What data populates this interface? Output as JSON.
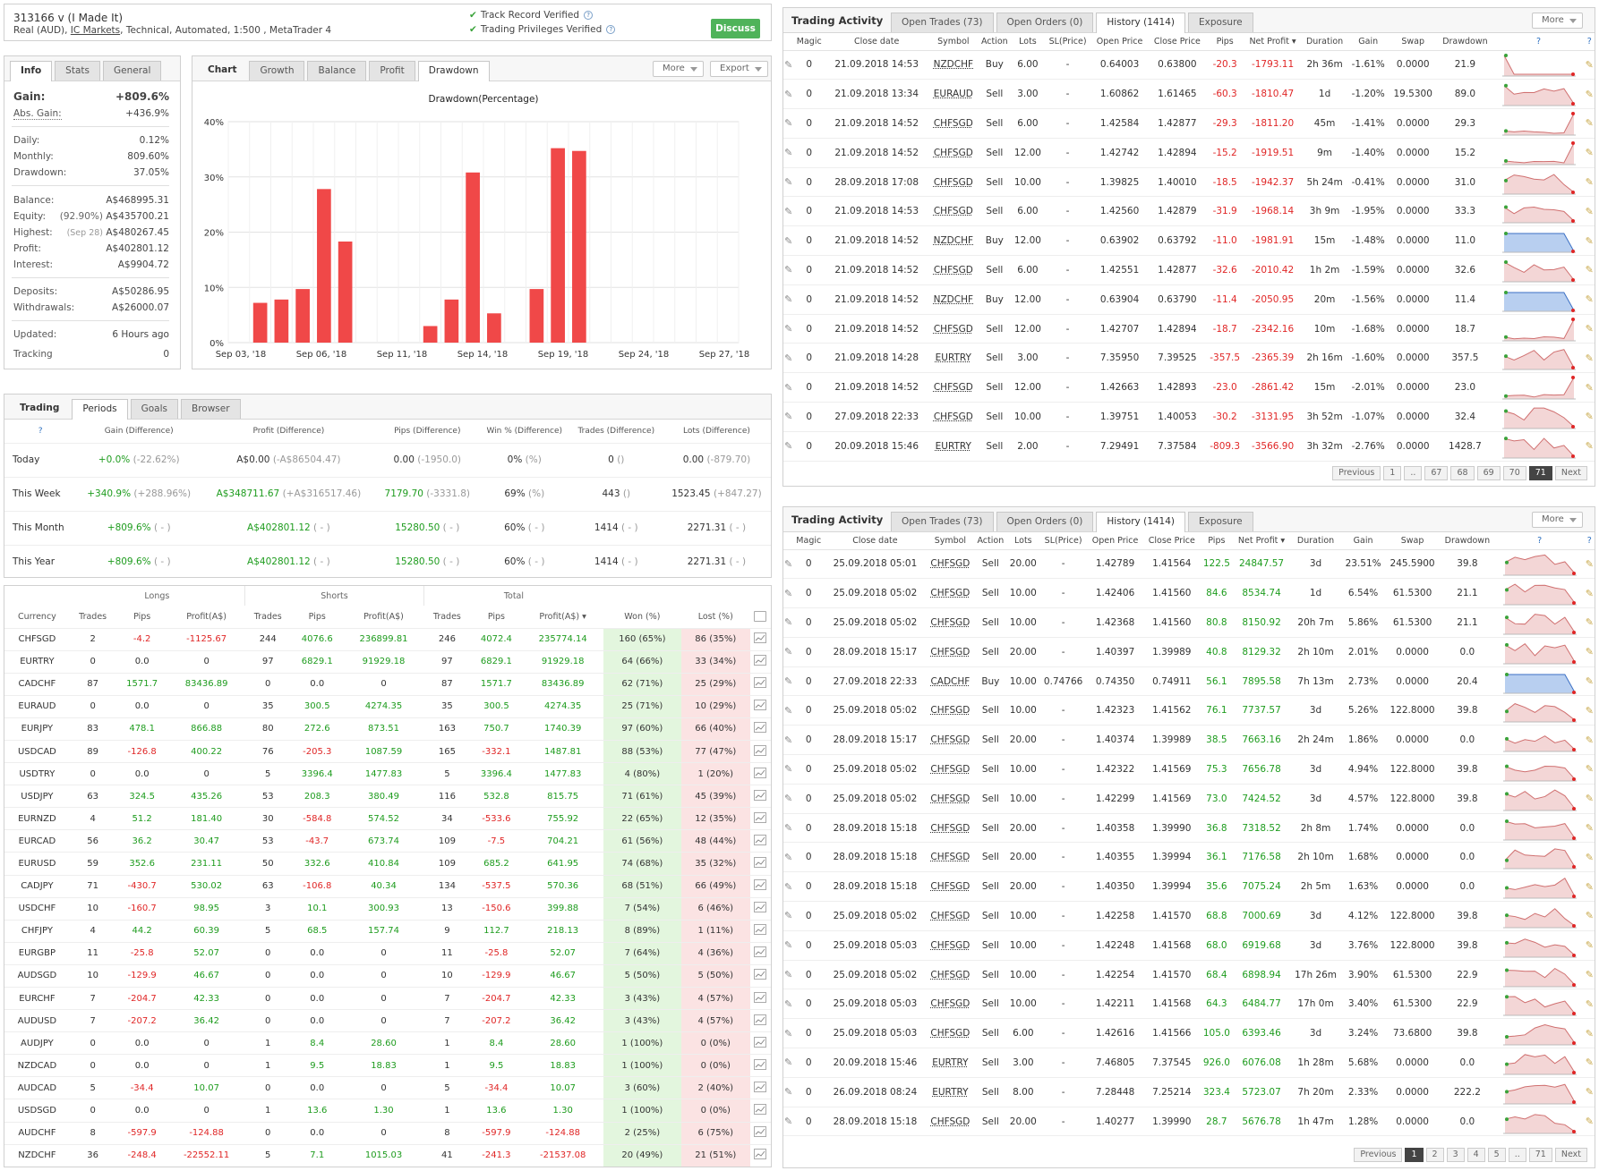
{
  "header": {
    "title": "313166 v (I Made It)",
    "subtitle_pre": "Real (AUD), ",
    "broker": "IC Markets",
    "subtitle_post": ", Technical, Automated, 1:500 , MetaTrader 4",
    "verify1": "Track Record Verified",
    "verify2": "Trading Privileges Verified",
    "discuss": "Discuss"
  },
  "info": {
    "tabs": [
      "Info",
      "Stats",
      "General"
    ],
    "gain_label": "Gain:",
    "gain": "+809.6%",
    "abs_label": "Abs. Gain:",
    "abs": "+436.9%",
    "daily_label": "Daily:",
    "daily": "0.12%",
    "monthly_label": "Monthly:",
    "monthly": "809.60%",
    "drawdown_label": "Drawdown:",
    "drawdown": "37.05%",
    "balance_label": "Balance:",
    "balance": "A$468995.31",
    "equity_label": "Equity:",
    "equity_pct": "(92.90%)",
    "equity": "A$435700.21",
    "highest_label": "Highest:",
    "highest_date": "(Sep 28)",
    "highest": "A$480267.45",
    "profit_label": "Profit:",
    "profit": "A$402801.12",
    "interest_label": "Interest:",
    "interest": "A$9904.72",
    "deposits_label": "Deposits:",
    "deposits": "A$50286.95",
    "withdrawals_label": "Withdrawals:",
    "withdrawals": "A$26000.07",
    "updated_label": "Updated:",
    "updated": "6 Hours ago",
    "tracking_label": "Tracking",
    "tracking": "0"
  },
  "chart": {
    "tabs": [
      "Chart",
      "Growth",
      "Balance",
      "Profit",
      "Drawdown"
    ],
    "more": "More",
    "export": "Export"
  },
  "chart_data": {
    "type": "bar",
    "title": "Drawdown(Percentage)",
    "ylim": [
      0,
      40
    ],
    "yticks": [
      "0%",
      "10%",
      "20%",
      "30%",
      "40%"
    ],
    "x_tick_labels": [
      "Sep 03, '18",
      "Sep 06, '18",
      "Sep 11, '18",
      "Sep 14, '18",
      "Sep 19, '18",
      "Sep 24, '18",
      "Sep 27, '18"
    ],
    "bars": [
      {
        "slot": 1,
        "value": 7.2
      },
      {
        "slot": 2,
        "value": 7.8
      },
      {
        "slot": 3,
        "value": 9.7
      },
      {
        "slot": 4,
        "value": 27.8
      },
      {
        "slot": 5,
        "value": 18.3
      },
      {
        "slot": 9,
        "value": 3.0
      },
      {
        "slot": 10,
        "value": 7.8
      },
      {
        "slot": 11,
        "value": 30.8
      },
      {
        "slot": 12,
        "value": 5.3
      },
      {
        "slot": 14,
        "value": 9.7
      },
      {
        "slot": 15,
        "value": 35.2
      },
      {
        "slot": 16,
        "value": 34.7
      }
    ],
    "slots": 24
  },
  "trading": {
    "tabs": [
      "Trading",
      "Periods",
      "Goals",
      "Browser"
    ],
    "headers": [
      "",
      "Gain (Difference)",
      "Profit (Difference)",
      "Pips (Difference)",
      "Win % (Difference)",
      "Trades (Difference)",
      "Lots (Difference)"
    ],
    "rows": [
      [
        "Today",
        "+0.0%",
        "(-22.62%)",
        "A$0.00",
        "(-A$86504.47)",
        "0.00",
        "(-1950.0)",
        "0%",
        "(%)",
        "0",
        "()",
        "0.00",
        "(-879.70)"
      ],
      [
        "This Week",
        "+340.9%",
        "(+288.96%)",
        "A$348711.67",
        "(+A$316517.46)",
        "7179.70",
        "(-3331.8)",
        "69%",
        "(%)",
        "443",
        "()",
        "1523.45",
        "(+847.27)"
      ],
      [
        "This Month",
        "+809.6%",
        "( - )",
        "A$402801.12",
        "( - )",
        "15280.50",
        "( - )",
        "60%",
        "( - )",
        "1414",
        "( - )",
        "2271.31",
        "( - )"
      ],
      [
        "This Year",
        "+809.6%",
        "( - )",
        "A$402801.12",
        "( - )",
        "15280.50",
        "( - )",
        "60%",
        "( - )",
        "1414",
        "( - )",
        "2271.31",
        "( - )"
      ]
    ]
  },
  "currency": {
    "groups": [
      "Longs",
      "Shorts",
      "Total"
    ],
    "headers": [
      "Currency",
      "Trades",
      "Pips",
      "Profit(A$)",
      "Trades",
      "Pips",
      "Profit(A$)",
      "Trades",
      "Pips",
      "Profit(A$) ▾",
      "Won (%)",
      "Lost (%)"
    ],
    "rows": [
      [
        "CHFSGD",
        "2",
        "-4.2",
        "-1125.67",
        "244",
        "4076.6",
        "236899.81",
        "246",
        "4072.4",
        "235774.14",
        "160 (65%)",
        "86 (35%)"
      ],
      [
        "EURTRY",
        "0",
        "0.0",
        "0",
        "97",
        "6829.1",
        "91929.18",
        "97",
        "6829.1",
        "91929.18",
        "64 (66%)",
        "33 (34%)"
      ],
      [
        "CADCHF",
        "87",
        "1571.7",
        "83436.89",
        "0",
        "0.0",
        "0",
        "87",
        "1571.7",
        "83436.89",
        "62 (71%)",
        "25 (29%)"
      ],
      [
        "EURAUD",
        "0",
        "0.0",
        "0",
        "35",
        "300.5",
        "4274.35",
        "35",
        "300.5",
        "4274.35",
        "25 (71%)",
        "10 (29%)"
      ],
      [
        "EURJPY",
        "83",
        "478.1",
        "866.88",
        "80",
        "272.6",
        "873.51",
        "163",
        "750.7",
        "1740.39",
        "97 (60%)",
        "66 (40%)"
      ],
      [
        "USDCAD",
        "89",
        "-126.8",
        "400.22",
        "76",
        "-205.3",
        "1087.59",
        "165",
        "-332.1",
        "1487.81",
        "88 (53%)",
        "77 (47%)"
      ],
      [
        "USDTRY",
        "0",
        "0.0",
        "0",
        "5",
        "3396.4",
        "1477.83",
        "5",
        "3396.4",
        "1477.83",
        "4 (80%)",
        "1 (20%)"
      ],
      [
        "USDJPY",
        "63",
        "324.5",
        "435.26",
        "53",
        "208.3",
        "380.49",
        "116",
        "532.8",
        "815.75",
        "71 (61%)",
        "45 (39%)"
      ],
      [
        "EURNZD",
        "4",
        "51.2",
        "181.40",
        "30",
        "-584.8",
        "574.52",
        "34",
        "-533.6",
        "755.92",
        "22 (65%)",
        "12 (35%)"
      ],
      [
        "EURCAD",
        "56",
        "36.2",
        "30.47",
        "53",
        "-43.7",
        "673.74",
        "109",
        "-7.5",
        "704.21",
        "61 (56%)",
        "48 (44%)"
      ],
      [
        "EURUSD",
        "59",
        "352.6",
        "231.11",
        "50",
        "332.6",
        "410.84",
        "109",
        "685.2",
        "641.95",
        "74 (68%)",
        "35 (32%)"
      ],
      [
        "CADJPY",
        "71",
        "-430.7",
        "530.02",
        "63",
        "-106.8",
        "40.34",
        "134",
        "-537.5",
        "570.36",
        "68 (51%)",
        "66 (49%)"
      ],
      [
        "USDCHF",
        "10",
        "-160.7",
        "98.95",
        "3",
        "10.1",
        "300.93",
        "13",
        "-150.6",
        "399.88",
        "7 (54%)",
        "6 (46%)"
      ],
      [
        "CHFJPY",
        "4",
        "44.2",
        "60.39",
        "5",
        "68.5",
        "157.74",
        "9",
        "112.7",
        "218.13",
        "8 (89%)",
        "1 (11%)"
      ],
      [
        "EURGBP",
        "11",
        "-25.8",
        "52.07",
        "0",
        "0.0",
        "0",
        "11",
        "-25.8",
        "52.07",
        "7 (64%)",
        "4 (36%)"
      ],
      [
        "AUDSGD",
        "10",
        "-129.9",
        "46.67",
        "0",
        "0.0",
        "0",
        "10",
        "-129.9",
        "46.67",
        "5 (50%)",
        "5 (50%)"
      ],
      [
        "EURCHF",
        "7",
        "-204.7",
        "42.33",
        "0",
        "0.0",
        "0",
        "7",
        "-204.7",
        "42.33",
        "3 (43%)",
        "4 (57%)"
      ],
      [
        "AUDUSD",
        "7",
        "-207.2",
        "36.42",
        "0",
        "0.0",
        "0",
        "7",
        "-207.2",
        "36.42",
        "3 (43%)",
        "4 (57%)"
      ],
      [
        "AUDJPY",
        "0",
        "0.0",
        "0",
        "1",
        "8.4",
        "28.60",
        "1",
        "8.4",
        "28.60",
        "1 (100%)",
        "0 (0%)"
      ],
      [
        "NZDCAD",
        "0",
        "0.0",
        "0",
        "1",
        "9.5",
        "18.83",
        "1",
        "9.5",
        "18.83",
        "1 (100%)",
        "0 (0%)"
      ],
      [
        "AUDCAD",
        "5",
        "-34.4",
        "10.07",
        "0",
        "0.0",
        "0",
        "5",
        "-34.4",
        "10.07",
        "3 (60%)",
        "2 (40%)"
      ],
      [
        "USDSGD",
        "0",
        "0.0",
        "0",
        "1",
        "13.6",
        "1.30",
        "1",
        "13.6",
        "1.30",
        "1 (100%)",
        "0 (0%)"
      ],
      [
        "AUDCHF",
        "8",
        "-597.9",
        "-124.88",
        "0",
        "0.0",
        "0",
        "8",
        "-597.9",
        "-124.88",
        "2 (25%)",
        "6 (75%)"
      ],
      [
        "NZDCHF",
        "36",
        "-248.4",
        "-22552.11",
        "5",
        "7.1",
        "1015.03",
        "41",
        "-241.3",
        "-21537.08",
        "20 (49%)",
        "21 (51%)"
      ]
    ]
  },
  "activity1": {
    "title": "Trading Activity",
    "tabs": [
      "Open Trades (73)",
      "Open Orders (0)",
      "History (1414)",
      "Exposure"
    ],
    "more": "More",
    "headers": [
      "",
      "Magic",
      "Close date",
      "Symbol",
      "Action",
      "Lots",
      "SL(Price)",
      "Open Price",
      "Close Price",
      "Pips",
      "Net Profit ▾",
      "Duration",
      "Gain",
      "Swap",
      "Drawdown",
      "?",
      ""
    ],
    "rows": [
      [
        "0",
        "21.09.2018 14:53",
        "NZDCHF",
        "Buy",
        "6.00",
        "-",
        "0.64003",
        "0.63800",
        "-20.3",
        "-1793.11",
        "2h 36m",
        "-1.61%",
        "0.0000",
        "21.9"
      ],
      [
        "0",
        "21.09.2018 13:34",
        "EURAUD",
        "Sell",
        "3.00",
        "-",
        "1.60862",
        "1.61465",
        "-60.3",
        "-1810.47",
        "1d",
        "-1.20%",
        "19.5300",
        "89.0"
      ],
      [
        "0",
        "21.09.2018 14:52",
        "CHFSGD",
        "Sell",
        "6.00",
        "-",
        "1.42584",
        "1.42877",
        "-29.3",
        "-1811.20",
        "45m",
        "-1.41%",
        "0.0000",
        "29.3"
      ],
      [
        "0",
        "21.09.2018 14:52",
        "CHFSGD",
        "Sell",
        "12.00",
        "-",
        "1.42742",
        "1.42894",
        "-15.2",
        "-1919.51",
        "9m",
        "-1.40%",
        "0.0000",
        "15.2"
      ],
      [
        "0",
        "28.09.2018 17:08",
        "CHFSGD",
        "Sell",
        "10.00",
        "-",
        "1.39825",
        "1.40010",
        "-18.5",
        "-1942.37",
        "5h 24m",
        "-0.41%",
        "0.0000",
        "31.0"
      ],
      [
        "0",
        "21.09.2018 14:53",
        "CHFSGD",
        "Sell",
        "6.00",
        "-",
        "1.42560",
        "1.42879",
        "-31.9",
        "-1968.14",
        "3h 9m",
        "-1.95%",
        "0.0000",
        "33.3"
      ],
      [
        "0",
        "21.09.2018 14:52",
        "NZDCHF",
        "Buy",
        "12.00",
        "-",
        "0.63902",
        "0.63792",
        "-11.0",
        "-1981.91",
        "15m",
        "-1.48%",
        "0.0000",
        "11.0"
      ],
      [
        "0",
        "21.09.2018 14:52",
        "CHFSGD",
        "Sell",
        "6.00",
        "-",
        "1.42551",
        "1.42877",
        "-32.6",
        "-2010.42",
        "1h 2m",
        "-1.59%",
        "0.0000",
        "32.6"
      ],
      [
        "0",
        "21.09.2018 14:52",
        "NZDCHF",
        "Buy",
        "12.00",
        "-",
        "0.63904",
        "0.63790",
        "-11.4",
        "-2050.95",
        "20m",
        "-1.56%",
        "0.0000",
        "11.4"
      ],
      [
        "0",
        "21.09.2018 14:52",
        "CHFSGD",
        "Sell",
        "12.00",
        "-",
        "1.42707",
        "1.42894",
        "-18.7",
        "-2342.16",
        "10m",
        "-1.68%",
        "0.0000",
        "18.7"
      ],
      [
        "0",
        "21.09.2018 14:28",
        "EURTRY",
        "Sell",
        "3.00",
        "-",
        "7.35950",
        "7.39525",
        "-357.5",
        "-2365.39",
        "2h 16m",
        "-1.60%",
        "0.0000",
        "357.5"
      ],
      [
        "0",
        "21.09.2018 14:52",
        "CHFSGD",
        "Sell",
        "12.00",
        "-",
        "1.42663",
        "1.42893",
        "-23.0",
        "-2861.42",
        "15m",
        "-2.01%",
        "0.0000",
        "23.0"
      ],
      [
        "0",
        "27.09.2018 22:33",
        "CHFSGD",
        "Sell",
        "10.00",
        "-",
        "1.39751",
        "1.40053",
        "-30.2",
        "-3131.95",
        "3h 52m",
        "-1.07%",
        "0.0000",
        "32.4"
      ],
      [
        "0",
        "20.09.2018 15:46",
        "EURTRY",
        "Sell",
        "2.00",
        "-",
        "7.29491",
        "7.37584",
        "-809.3",
        "-3566.90",
        "3h 32m",
        "-2.76%",
        "0.0000",
        "1428.7"
      ]
    ],
    "pager": [
      "Previous",
      "1",
      "..",
      "67",
      "68",
      "69",
      "70",
      "71",
      "Next"
    ],
    "pager_current": "71"
  },
  "activity2": {
    "title": "Trading Activity",
    "tabs": [
      "Open Trades (73)",
      "Open Orders (0)",
      "History (1414)",
      "Exposure"
    ],
    "more": "More",
    "headers": [
      "",
      "Magic",
      "Close date",
      "Symbol",
      "Action",
      "Lots",
      "SL(Price)",
      "Open Price",
      "Close Price",
      "Pips",
      "Net Profit ▾",
      "Duration",
      "Gain",
      "Swap",
      "Drawdown",
      "?",
      ""
    ],
    "rows": [
      [
        "0",
        "25.09.2018 05:01",
        "CHFSGD",
        "Sell",
        "20.00",
        "-",
        "1.42789",
        "1.41564",
        "122.5",
        "24847.57",
        "3d",
        "23.51%",
        "245.5900",
        "39.8"
      ],
      [
        "0",
        "25.09.2018 05:02",
        "CHFSGD",
        "Sell",
        "10.00",
        "-",
        "1.42406",
        "1.41560",
        "84.6",
        "8534.74",
        "1d",
        "6.54%",
        "61.5300",
        "21.1"
      ],
      [
        "0",
        "25.09.2018 05:02",
        "CHFSGD",
        "Sell",
        "10.00",
        "-",
        "1.42368",
        "1.41560",
        "80.8",
        "8150.92",
        "20h 7m",
        "5.86%",
        "61.5300",
        "21.1"
      ],
      [
        "0",
        "28.09.2018 15:17",
        "CHFSGD",
        "Sell",
        "20.00",
        "-",
        "1.40397",
        "1.39989",
        "40.8",
        "8129.32",
        "2h 10m",
        "2.01%",
        "0.0000",
        "0.0"
      ],
      [
        "0",
        "27.09.2018 22:33",
        "CADCHF",
        "Buy",
        "10.00",
        "0.74766",
        "0.74350",
        "0.74911",
        "56.1",
        "7895.58",
        "7h 13m",
        "2.73%",
        "0.0000",
        "20.4"
      ],
      [
        "0",
        "25.09.2018 05:02",
        "CHFSGD",
        "Sell",
        "10.00",
        "-",
        "1.42323",
        "1.41562",
        "76.1",
        "7737.57",
        "3d",
        "5.26%",
        "122.8000",
        "39.8"
      ],
      [
        "0",
        "28.09.2018 15:17",
        "CHFSGD",
        "Sell",
        "20.00",
        "-",
        "1.40374",
        "1.39989",
        "38.5",
        "7663.16",
        "2h 24m",
        "1.86%",
        "0.0000",
        "0.0"
      ],
      [
        "0",
        "25.09.2018 05:02",
        "CHFSGD",
        "Sell",
        "10.00",
        "-",
        "1.42322",
        "1.41569",
        "75.3",
        "7656.78",
        "3d",
        "4.94%",
        "122.8000",
        "39.8"
      ],
      [
        "0",
        "25.09.2018 05:02",
        "CHFSGD",
        "Sell",
        "10.00",
        "-",
        "1.42299",
        "1.41569",
        "73.0",
        "7424.52",
        "3d",
        "4.57%",
        "122.8000",
        "39.8"
      ],
      [
        "0",
        "28.09.2018 15:18",
        "CHFSGD",
        "Sell",
        "20.00",
        "-",
        "1.40358",
        "1.39990",
        "36.8",
        "7318.52",
        "2h 8m",
        "1.74%",
        "0.0000",
        "0.0"
      ],
      [
        "0",
        "28.09.2018 15:18",
        "CHFSGD",
        "Sell",
        "20.00",
        "-",
        "1.40355",
        "1.39994",
        "36.1",
        "7176.58",
        "2h 10m",
        "1.68%",
        "0.0000",
        "0.0"
      ],
      [
        "0",
        "28.09.2018 15:18",
        "CHFSGD",
        "Sell",
        "20.00",
        "-",
        "1.40350",
        "1.39994",
        "35.6",
        "7075.24",
        "2h 5m",
        "1.63%",
        "0.0000",
        "0.0"
      ],
      [
        "0",
        "25.09.2018 05:02",
        "CHFSGD",
        "Sell",
        "10.00",
        "-",
        "1.42258",
        "1.41570",
        "68.8",
        "7000.69",
        "3d",
        "4.12%",
        "122.8000",
        "39.8"
      ],
      [
        "0",
        "25.09.2018 05:03",
        "CHFSGD",
        "Sell",
        "10.00",
        "-",
        "1.42248",
        "1.41568",
        "68.0",
        "6919.68",
        "3d",
        "3.76%",
        "122.8000",
        "39.8"
      ],
      [
        "0",
        "25.09.2018 05:02",
        "CHFSGD",
        "Sell",
        "10.00",
        "-",
        "1.42254",
        "1.41570",
        "68.4",
        "6898.94",
        "17h 26m",
        "3.90%",
        "61.5300",
        "22.9"
      ],
      [
        "0",
        "25.09.2018 05:03",
        "CHFSGD",
        "Sell",
        "10.00",
        "-",
        "1.42211",
        "1.41568",
        "64.3",
        "6484.77",
        "17h 0m",
        "3.40%",
        "61.5300",
        "22.9"
      ],
      [
        "0",
        "25.09.2018 05:03",
        "CHFSGD",
        "Sell",
        "6.00",
        "-",
        "1.42616",
        "1.41566",
        "105.0",
        "6393.46",
        "3d",
        "3.24%",
        "73.6800",
        "39.8"
      ],
      [
        "0",
        "20.09.2018 15:46",
        "EURTRY",
        "Sell",
        "3.00",
        "-",
        "7.46805",
        "7.37545",
        "926.0",
        "6076.08",
        "1h 28m",
        "5.68%",
        "0.0000",
        "0.0"
      ],
      [
        "0",
        "26.09.2018 08:24",
        "EURTRY",
        "Sell",
        "8.00",
        "-",
        "7.28448",
        "7.25214",
        "323.4",
        "5723.07",
        "7h 20m",
        "2.33%",
        "0.0000",
        "222.2"
      ],
      [
        "0",
        "28.09.2018 15:18",
        "CHFSGD",
        "Sell",
        "20.00",
        "-",
        "1.40277",
        "1.39990",
        "28.7",
        "5676.78",
        "1h 47m",
        "1.28%",
        "0.0000",
        "0.0"
      ]
    ],
    "pager": [
      "Previous",
      "1",
      "2",
      "3",
      "4",
      "5",
      "..",
      "71",
      "Next"
    ],
    "pager_current": "1"
  }
}
